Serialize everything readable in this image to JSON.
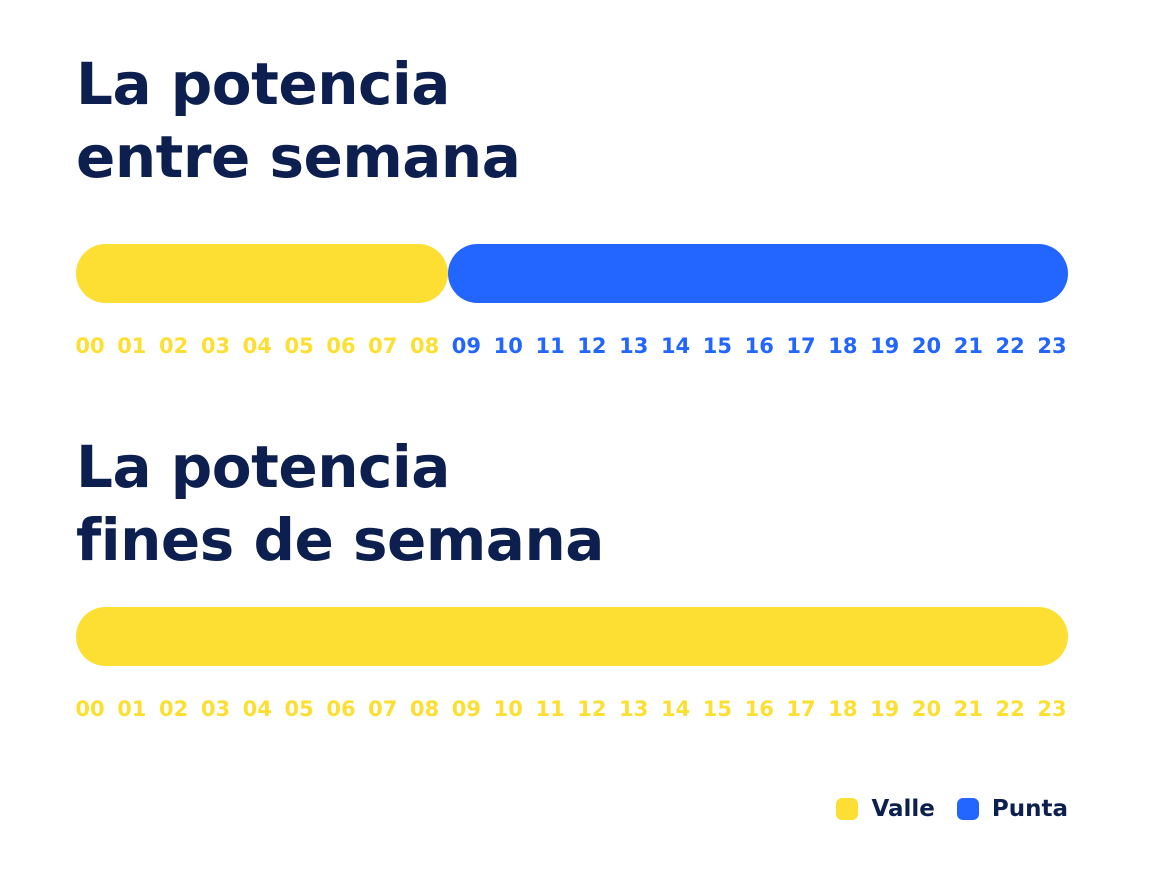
{
  "colors": {
    "valle": "#fddf33",
    "punta": "#2266ff",
    "title": "#0c1f4f"
  },
  "chart_data": [
    {
      "type": "bar",
      "title_lines": [
        "La potencia",
        "entre semana"
      ],
      "x_ticks": [
        "00",
        "01",
        "02",
        "03",
        "04",
        "05",
        "06",
        "07",
        "08",
        "09",
        "10",
        "11",
        "12",
        "13",
        "14",
        "15",
        "16",
        "17",
        "18",
        "19",
        "20",
        "21",
        "22",
        "23"
      ],
      "periods": [
        {
          "name": "Valle",
          "start": 0,
          "end": 9,
          "color": "#fddf33"
        },
        {
          "name": "Punta",
          "start": 9,
          "end": 24,
          "color": "#2266ff"
        }
      ]
    },
    {
      "type": "bar",
      "title_lines": [
        "La potencia",
        "fines de semana"
      ],
      "x_ticks": [
        "00",
        "01",
        "02",
        "03",
        "04",
        "05",
        "06",
        "07",
        "08",
        "09",
        "10",
        "11",
        "12",
        "13",
        "14",
        "15",
        "16",
        "17",
        "18",
        "19",
        "20",
        "21",
        "22",
        "23"
      ],
      "periods": [
        {
          "name": "Valle",
          "start": 0,
          "end": 24,
          "color": "#fddf33"
        }
      ]
    }
  ],
  "legend": [
    {
      "label": "Valle",
      "color": "#fddf33"
    },
    {
      "label": "Punta",
      "color": "#2266ff"
    }
  ]
}
